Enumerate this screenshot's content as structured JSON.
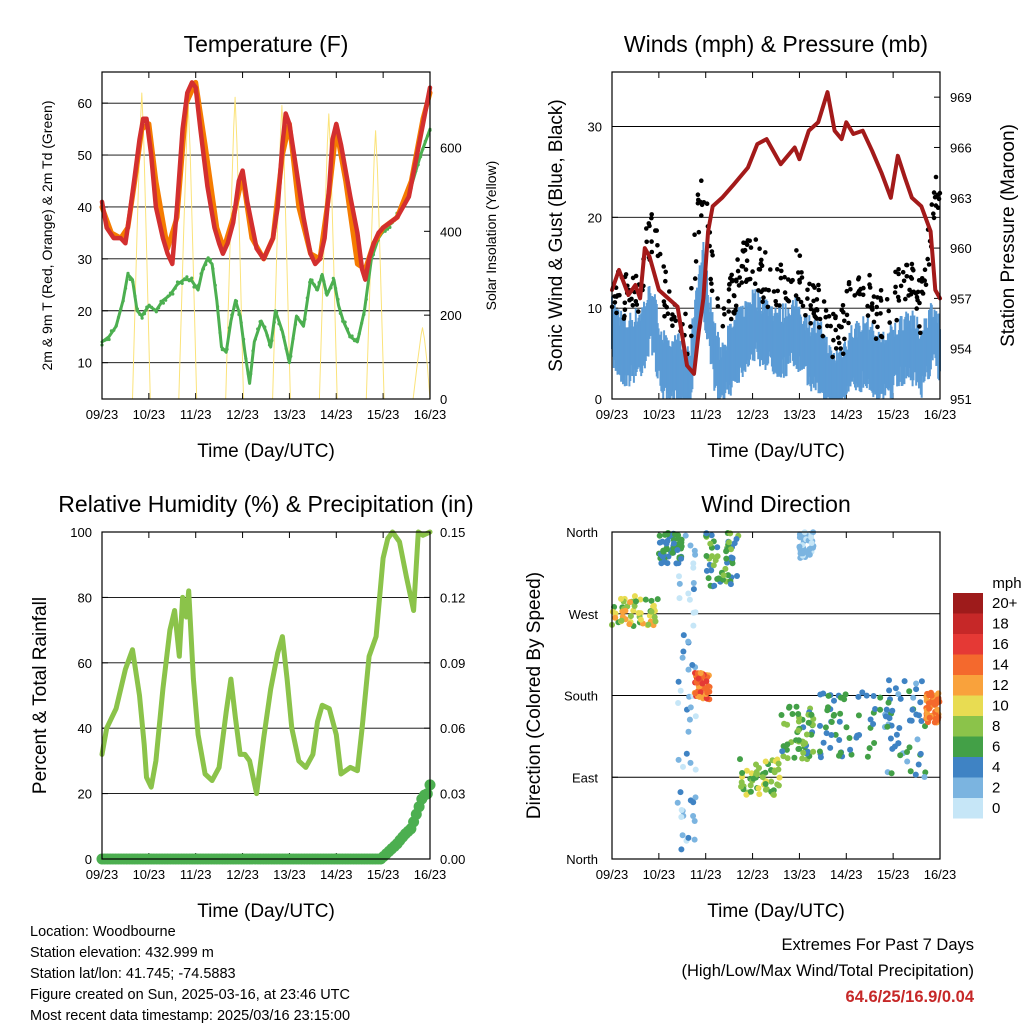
{
  "chart_data": [
    {
      "type": "line",
      "title": "Temperature (F)",
      "xlabel": "Time (Day/UTC)",
      "ylabel": "2m & 9m T (Red, Orange) & 2m Td (Green)",
      "y2label": "Solar Insolation (Yellow)",
      "x_ticks": [
        "09/23",
        "10/23",
        "11/23",
        "12/23",
        "13/23",
        "14/23",
        "15/23",
        "16/23"
      ],
      "ylim": [
        3,
        66
      ],
      "y_ticks": [
        10,
        20,
        30,
        40,
        50,
        60
      ],
      "y2lim": [
        0,
        780
      ],
      "y2_ticks": [
        0,
        200,
        400,
        600
      ],
      "grid": true,
      "series": [
        {
          "color": "#d32f2f",
          "x": [
            0,
            0.1,
            0.25,
            0.4,
            0.5,
            0.58,
            0.7,
            0.8,
            0.88,
            0.95,
            1.05,
            1.15,
            1.3,
            1.4,
            1.5,
            1.6,
            1.72,
            1.82,
            1.92,
            2.0,
            2.1,
            2.25,
            2.4,
            2.5,
            2.58,
            2.68,
            2.8,
            2.92,
            3.0,
            3.1,
            3.3,
            3.45,
            3.55,
            3.65,
            3.75,
            3.85,
            3.92,
            4.0,
            4.15,
            4.3,
            4.45,
            4.55,
            4.65,
            4.75,
            4.85,
            4.92,
            5.0,
            5.1,
            5.3,
            5.45,
            5.55,
            5.62,
            5.7,
            5.8,
            5.9,
            6.0,
            6.3,
            6.55,
            6.85,
            7.0
          ],
          "values": [
            41,
            36,
            34,
            34,
            33,
            38,
            46,
            53,
            57,
            57,
            50,
            40,
            34,
            31,
            29,
            40,
            55,
            62,
            64,
            63,
            55,
            44,
            36,
            33,
            31,
            33,
            37,
            45,
            47,
            41,
            32,
            30,
            32,
            34,
            40,
            52,
            58,
            56,
            47,
            38,
            31,
            29,
            30,
            34,
            44,
            53,
            56,
            52,
            42,
            35,
            28,
            26,
            30,
            33,
            35,
            36,
            38,
            42,
            56,
            63
          ]
        },
        {
          "color": "#f57c00",
          "x": [
            0,
            0.2,
            0.4,
            0.55,
            0.7,
            0.85,
            1.0,
            1.15,
            1.4,
            1.6,
            1.8,
            2.0,
            2.2,
            2.45,
            2.6,
            2.8,
            3.0,
            3.2,
            3.45,
            3.65,
            3.85,
            4.0,
            4.2,
            4.45,
            4.65,
            4.85,
            5.0,
            5.2,
            5.45,
            5.62,
            5.8,
            6.0,
            6.3,
            6.6,
            6.85,
            7.0
          ],
          "values": [
            40,
            35,
            34,
            36,
            45,
            55,
            56,
            45,
            32,
            38,
            60,
            64,
            52,
            36,
            32,
            38,
            46,
            34,
            30,
            34,
            50,
            56,
            40,
            31,
            30,
            43,
            55,
            45,
            29,
            28,
            33,
            36,
            38,
            45,
            57,
            62
          ]
        },
        {
          "color": "#4caf50",
          "x": [
            0,
            0.15,
            0.3,
            0.45,
            0.55,
            0.65,
            0.75,
            0.85,
            1.0,
            1.15,
            1.3,
            1.45,
            1.6,
            1.75,
            1.9,
            2.05,
            2.15,
            2.25,
            2.35,
            2.45,
            2.55,
            2.65,
            2.75,
            2.85,
            2.95,
            3.05,
            3.15,
            3.25,
            3.4,
            3.5,
            3.6,
            3.7,
            3.85,
            4.0,
            4.15,
            4.3,
            4.45,
            4.6,
            4.7,
            4.8,
            4.95,
            5.05,
            5.15,
            5.3,
            5.45,
            5.6,
            5.75,
            5.9,
            6.05,
            6.2,
            6.4,
            6.6,
            6.8,
            7.0
          ],
          "values": [
            14,
            15,
            17,
            22,
            27,
            26,
            20,
            19,
            21,
            20,
            22,
            23,
            25,
            26,
            26,
            24,
            28,
            30,
            29,
            22,
            13,
            12,
            18,
            22,
            19,
            12,
            6,
            14,
            18,
            16,
            13,
            20,
            16,
            10,
            19,
            17,
            26,
            24,
            27,
            23,
            26,
            21,
            18,
            15,
            14,
            20,
            30,
            34,
            36,
            37,
            40,
            44,
            50,
            55
          ]
        }
      ],
      "solar_insolation": {
        "color": "#fbe37a",
        "peaks_x": [
          0.85,
          1.84,
          2.84,
          3.84,
          4.84,
          5.84,
          6.84
        ],
        "peaks": [
          730,
          700,
          720,
          700,
          680,
          640,
          170
        ]
      }
    },
    {
      "type": "line",
      "title": "Winds (mph) & Pressure (mb)",
      "xlabel": "Time (Day/UTC)",
      "ylabel": "Sonic Wind & Gust (Blue, Black)",
      "y2label": "Station Pressure (Maroon)",
      "x_ticks": [
        "09/23",
        "10/23",
        "11/23",
        "12/23",
        "13/23",
        "14/23",
        "15/23",
        "16/23"
      ],
      "ylim": [
        0,
        36
      ],
      "y_ticks": [
        0,
        10,
        20,
        30
      ],
      "y2lim": [
        951,
        970.5
      ],
      "y2_ticks": [
        951,
        954,
        957,
        960,
        963,
        966,
        969
      ],
      "grid": true,
      "series": [
        {
          "name": "Wind",
          "color": "#5b9bd5",
          "x": [
            0,
            0.3,
            0.6,
            0.85,
            1.0,
            1.2,
            1.4,
            1.55,
            1.65,
            1.8,
            1.95,
            2.1,
            2.3,
            2.5,
            2.75,
            3.0,
            3.3,
            3.6,
            3.9,
            4.2,
            4.5,
            4.7,
            4.9,
            5.1,
            5.4,
            5.7,
            6.0,
            6.3,
            6.6,
            6.85,
            7.0
          ],
          "values": [
            8,
            6,
            7,
            10,
            6,
            3,
            4,
            3,
            2,
            10,
            14,
            8,
            3,
            5,
            7,
            9,
            8,
            7,
            8,
            6,
            5,
            2,
            3,
            5,
            6,
            4,
            5,
            7,
            5,
            8,
            6
          ]
        },
        {
          "name": "Gust",
          "color": "#000000",
          "x": [
            0,
            0.3,
            0.6,
            0.8,
            0.95,
            1.1,
            1.3,
            1.5,
            1.65,
            1.8,
            1.95,
            2.1,
            2.3,
            2.5,
            2.75,
            3.0,
            3.3,
            3.6,
            3.9,
            4.2,
            4.5,
            4.7,
            4.9,
            5.1,
            5.4,
            5.7,
            6.0,
            6.3,
            6.6,
            6.85,
            7.0
          ],
          "values": [
            13,
            11,
            12,
            18,
            20,
            12,
            8,
            9,
            6,
            18,
            25,
            16,
            8,
            11,
            14,
            15,
            13,
            12,
            14,
            11,
            9,
            7,
            7,
            11,
            12,
            9,
            11,
            13,
            10,
            20,
            24
          ]
        },
        {
          "name": "Pressure",
          "color": "#a31a1a",
          "x": [
            0,
            0.15,
            0.35,
            0.5,
            0.6,
            0.7,
            0.8,
            1.0,
            1.2,
            1.4,
            1.6,
            1.75,
            1.85,
            1.95,
            2.05,
            2.15,
            2.35,
            2.6,
            2.9,
            3.1,
            3.3,
            3.6,
            3.9,
            4.0,
            4.2,
            4.4,
            4.6,
            4.75,
            4.9,
            5.0,
            5.15,
            5.35,
            5.55,
            5.75,
            5.95,
            6.1,
            6.25,
            6.4,
            6.6,
            6.8,
            6.9,
            7.0
          ],
          "values": [
            957.5,
            958.7,
            957.2,
            957.8,
            957.0,
            960.0,
            959.5,
            957.5,
            957.0,
            956.5,
            953.0,
            952.5,
            955.0,
            957.0,
            961.0,
            962.5,
            963.0,
            963.8,
            964.8,
            966.2,
            966.5,
            965.0,
            966.0,
            965.3,
            967.0,
            967.5,
            969.3,
            967.0,
            966.5,
            967.5,
            966.8,
            967.0,
            965.8,
            964.5,
            963.0,
            965.5,
            964.2,
            963.0,
            962.5,
            961.0,
            957.5,
            957.0
          ]
        }
      ]
    },
    {
      "type": "line",
      "title": "Relative Humidity (%) & Precipitation (in)",
      "xlabel": "Time (Day/UTC)",
      "ylabel": "Percent & Total Rainfall",
      "x_ticks": [
        "09/23",
        "10/23",
        "11/23",
        "12/23",
        "13/23",
        "14/23",
        "15/23",
        "16/23"
      ],
      "ylim": [
        0,
        100
      ],
      "y_ticks": [
        0,
        20,
        40,
        60,
        80,
        100
      ],
      "y2lim": [
        0,
        0.15
      ],
      "y2_ticks": [
        "0.00",
        "0.03",
        "0.06",
        "0.09",
        "0.12",
        "0.15"
      ],
      "grid": true,
      "series": [
        {
          "name": "Relative Humidity",
          "color": "#8bc34a",
          "x": [
            0,
            0.1,
            0.3,
            0.5,
            0.65,
            0.8,
            0.9,
            0.95,
            1.05,
            1.15,
            1.3,
            1.45,
            1.55,
            1.65,
            1.72,
            1.8,
            1.85,
            1.95,
            2.05,
            2.2,
            2.35,
            2.5,
            2.65,
            2.75,
            2.85,
            2.95,
            3.05,
            3.15,
            3.3,
            3.45,
            3.6,
            3.75,
            3.85,
            3.95,
            4.05,
            4.2,
            4.35,
            4.5,
            4.6,
            4.7,
            4.85,
            5.0,
            5.1,
            5.3,
            5.45,
            5.55,
            5.7,
            5.85,
            6.0,
            6.1,
            6.2,
            6.35,
            6.5,
            6.65,
            6.75,
            6.85,
            7.0
          ],
          "values": [
            32,
            40,
            46,
            58,
            64,
            50,
            35,
            25,
            22,
            30,
            52,
            70,
            76,
            62,
            80,
            74,
            82,
            55,
            38,
            26,
            24,
            28,
            45,
            55,
            43,
            32,
            32,
            30,
            20,
            37,
            52,
            63,
            68,
            55,
            40,
            30,
            28,
            32,
            42,
            47,
            46,
            38,
            26,
            28,
            27,
            40,
            62,
            68,
            92,
            98,
            100,
            97,
            86,
            76,
            100,
            99,
            100
          ]
        },
        {
          "name": "Total Precipitation",
          "color": "#4caf50",
          "x": [
            0,
            5.95,
            6.05,
            6.15,
            6.3,
            6.45,
            6.6,
            6.7,
            6.85,
            6.95,
            7.0
          ],
          "values": [
            0,
            0,
            0.002,
            0.004,
            0.007,
            0.011,
            0.014,
            0.02,
            0.029,
            0.03,
            0.034
          ]
        }
      ]
    },
    {
      "type": "scatter",
      "title": "Wind Direction",
      "xlabel": "Time (Day/UTC)",
      "ylabel": "Direction (Colored By Speed)",
      "x_ticks": [
        "09/23",
        "10/23",
        "11/23",
        "12/23",
        "13/23",
        "14/23",
        "15/23",
        "16/23"
      ],
      "y_ticks": [
        "North",
        "East",
        "South",
        "West",
        "North"
      ],
      "ylim": [
        0,
        360
      ],
      "grid": true,
      "legend": {
        "title": "mph",
        "placement": "right",
        "labels": [
          "20+",
          "18",
          "16",
          "14",
          "12",
          "10",
          "8",
          "6",
          "4",
          "2",
          "0"
        ],
        "colors": [
          "#9e1b1b",
          "#c62828",
          "#e53935",
          "#f4692d",
          "#f9a23c",
          "#e8dc52",
          "#8bc34a",
          "#43a047",
          "#3f83c4",
          "#7bb4e0",
          "#c6e6f7"
        ]
      },
      "clusters": [
        {
          "x": [
            0,
            1.0
          ],
          "dir": [
            255,
            290
          ],
          "speed": [
            6,
            12
          ]
        },
        {
          "x": [
            1.0,
            1.5
          ],
          "dir": [
            325,
            360
          ],
          "speed": [
            3,
            7
          ]
        },
        {
          "x": [
            1.4,
            1.8
          ],
          "dir": [
            0,
            360
          ],
          "speed": [
            0,
            4
          ]
        },
        {
          "x": [
            1.75,
            2.1
          ],
          "dir": [
            175,
            205
          ],
          "speed": [
            12,
            16
          ]
        },
        {
          "x": [
            2.0,
            2.7
          ],
          "dir": [
            300,
            360
          ],
          "speed": [
            3,
            8
          ]
        },
        {
          "x": [
            2.7,
            3.6
          ],
          "dir": [
            70,
            110
          ],
          "speed": [
            5,
            11
          ]
        },
        {
          "x": [
            3.6,
            4.3
          ],
          "dir": [
            110,
            170
          ],
          "speed": [
            4,
            9
          ]
        },
        {
          "x": [
            4.0,
            4.3
          ],
          "dir": [
            330,
            360
          ],
          "speed": [
            0,
            3
          ]
        },
        {
          "x": [
            4.4,
            5.8
          ],
          "dir": [
            110,
            185
          ],
          "speed": [
            3,
            7
          ]
        },
        {
          "x": [
            5.8,
            6.7
          ],
          "dir": [
            90,
            200
          ],
          "speed": [
            2,
            6
          ]
        },
        {
          "x": [
            6.7,
            7.0
          ],
          "dir": [
            150,
            185
          ],
          "speed": [
            12,
            15
          ]
        }
      ]
    }
  ],
  "info": {
    "location": "Location: Woodbourne",
    "elevation": "Station elevation: 432.999 m",
    "latlon": "Station lat/lon: 41.745; -74.5883",
    "created": "Figure created on Sun, 2025-03-16, at 23:46 UTC",
    "recent": "Most recent data timestamp: 2025/03/16 23:15:00"
  },
  "extremes": {
    "line1": "Extremes For Past 7 Days",
    "line2": "(High/Low/Max Wind/Total Precipitation)",
    "values": "64.6/25/16.9/0.04"
  }
}
